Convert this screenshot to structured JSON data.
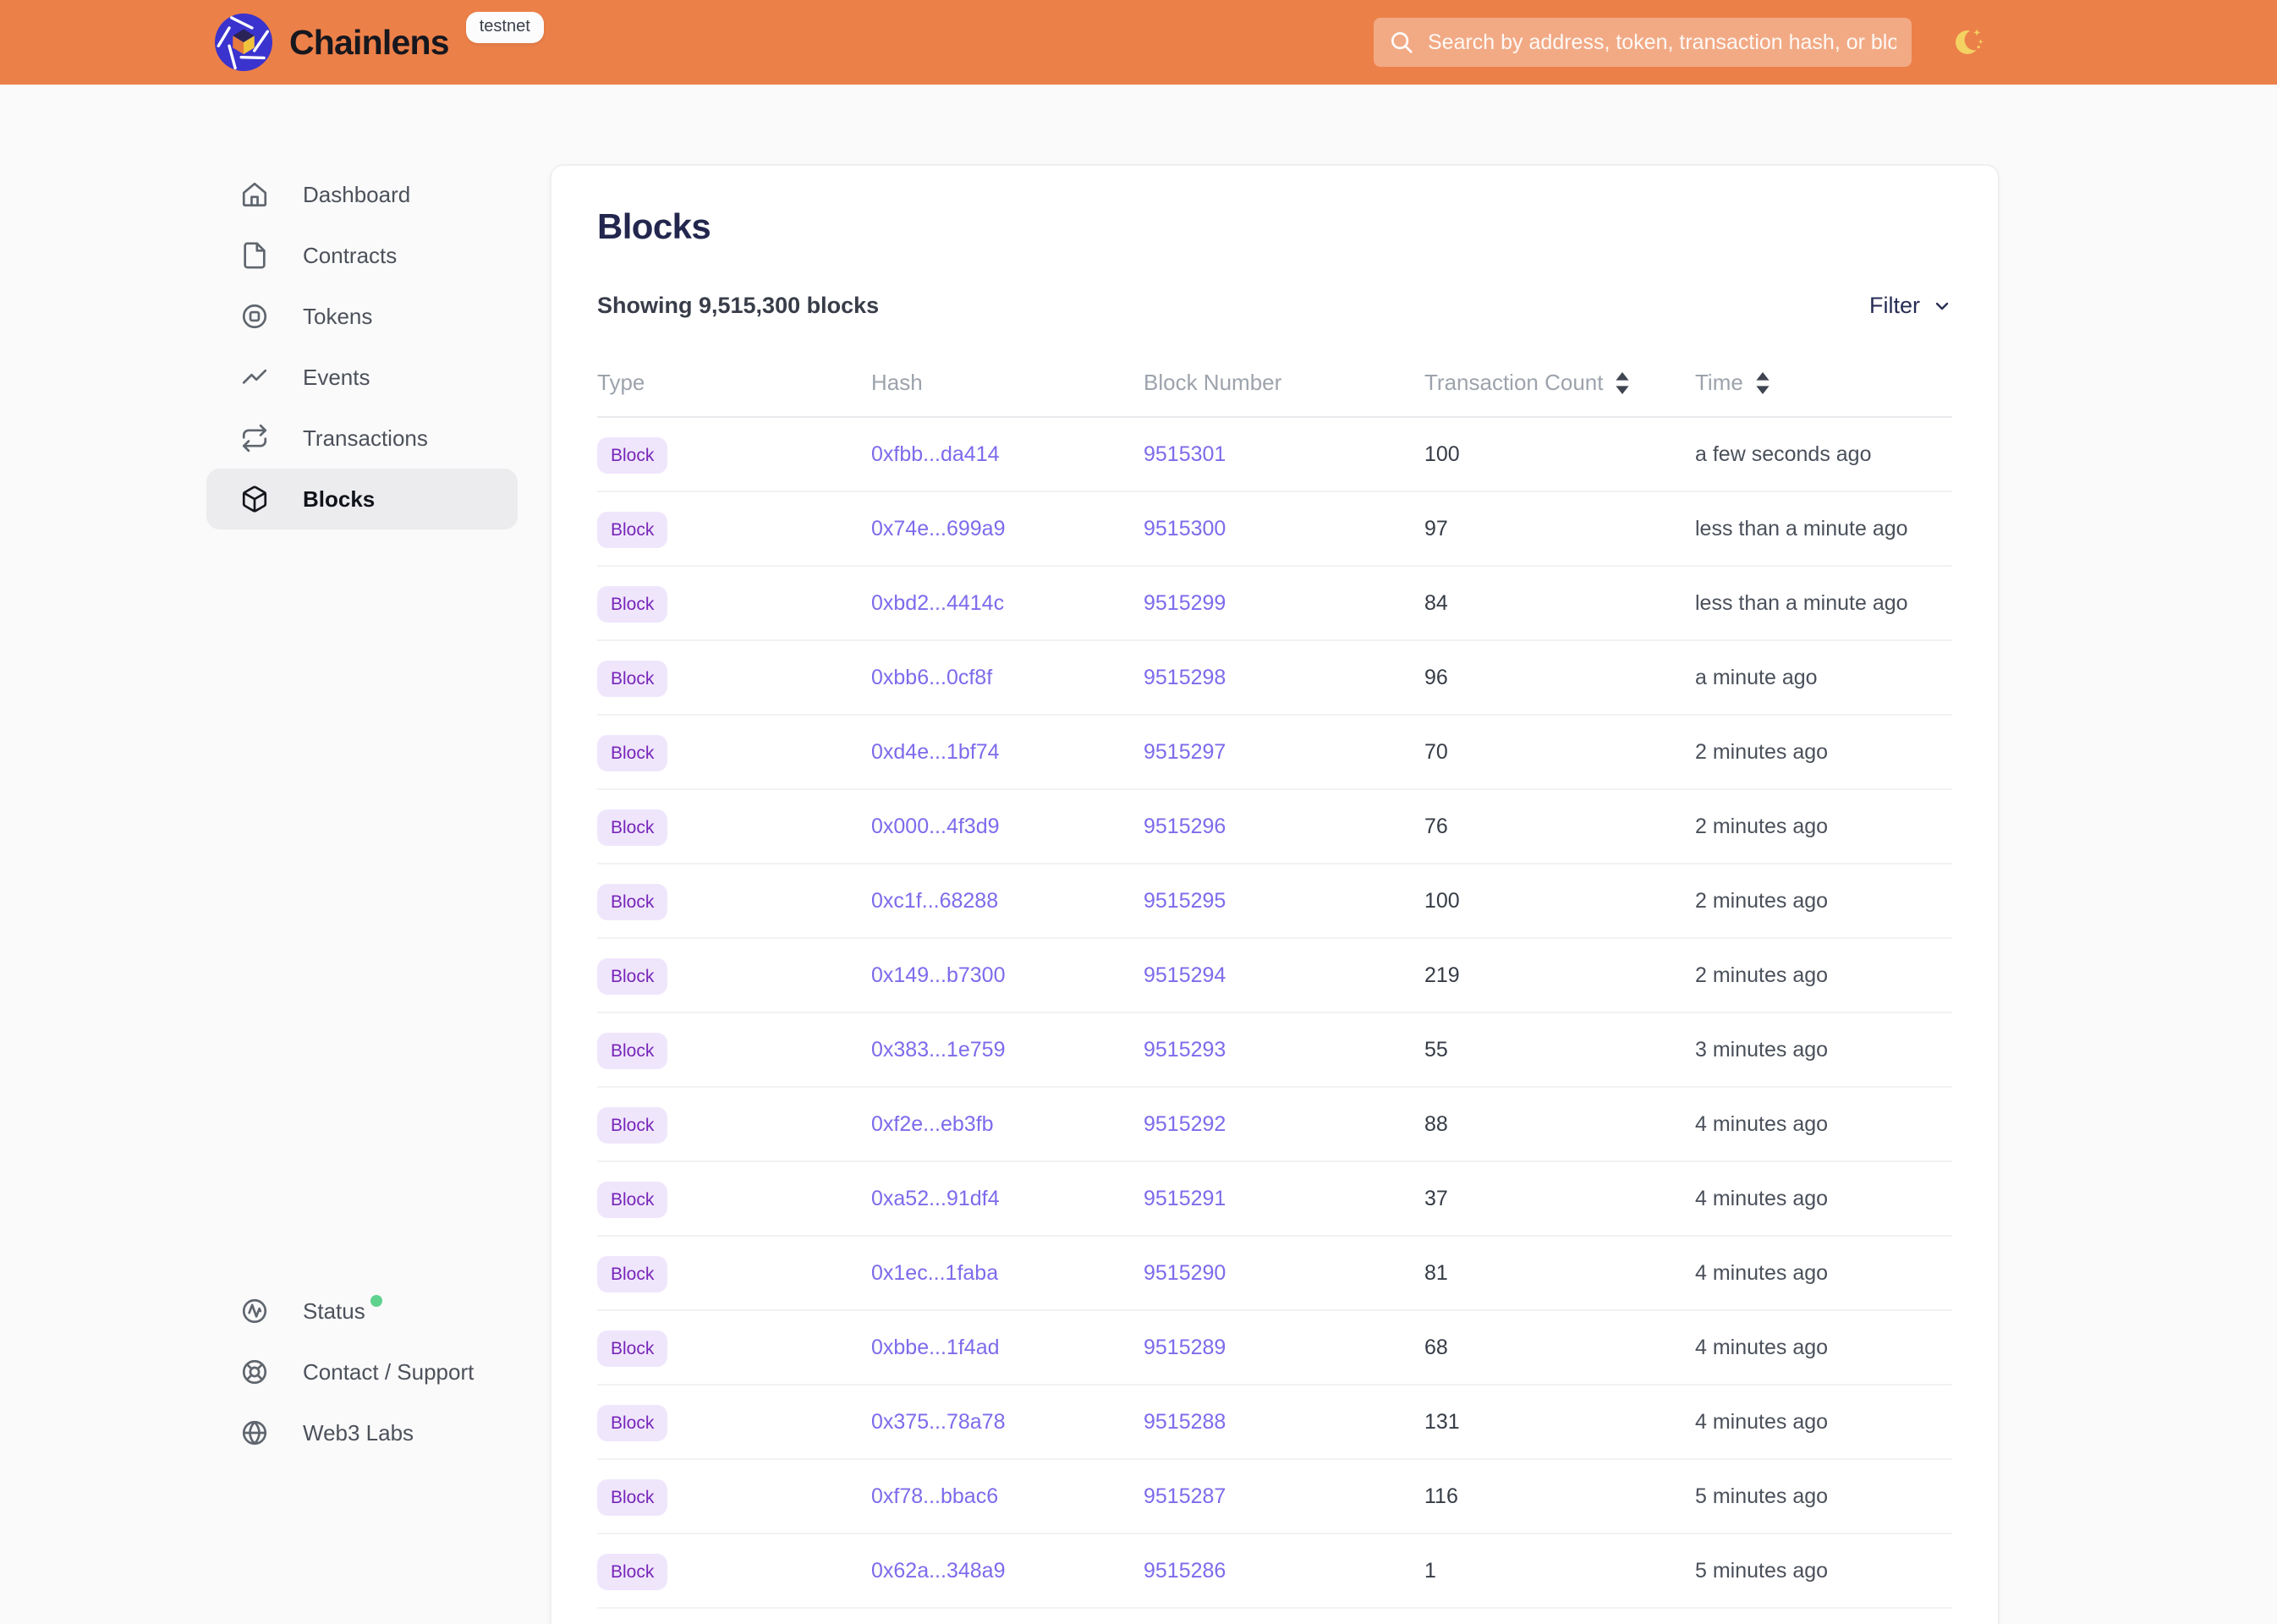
{
  "colors": {
    "header_bg": "#EC8049",
    "page_bg": "#FAFAFB",
    "title": "#23274E",
    "link": "#7C6BEB",
    "badge_bg": "#EFE6FC",
    "badge_text": "#7725B8",
    "status_dot": "#5FD38E",
    "logo_blue": "#3B33CE",
    "moon_yellow": "#F3D263"
  },
  "header": {
    "brand": "Chainlens",
    "env_badge": "testnet",
    "search_placeholder": "Search by address, token, transaction hash, or block number",
    "icons": {
      "search": "search-icon",
      "theme": "moon-icon"
    }
  },
  "sidebar": {
    "items": [
      {
        "label": "Dashboard",
        "icon": "home-icon",
        "active": false
      },
      {
        "label": "Contracts",
        "icon": "file-icon",
        "active": false
      },
      {
        "label": "Tokens",
        "icon": "token-icon",
        "active": false
      },
      {
        "label": "Events",
        "icon": "activity-icon",
        "active": false
      },
      {
        "label": "Transactions",
        "icon": "repeat-icon",
        "active": false
      },
      {
        "label": "Blocks",
        "icon": "cube-icon",
        "active": true
      }
    ],
    "footer_items": [
      {
        "label": "Status",
        "icon": "status-icon",
        "status_dot": true
      },
      {
        "label": "Contact / Support",
        "icon": "support-icon",
        "status_dot": false
      },
      {
        "label": "Web3 Labs",
        "icon": "globe-icon",
        "status_dot": false
      }
    ]
  },
  "main": {
    "title": "Blocks",
    "summary": "Showing 9,515,300 blocks",
    "filter_label": "Filter",
    "table": {
      "columns": [
        {
          "label": "Type",
          "sortable": false
        },
        {
          "label": "Hash",
          "sortable": false
        },
        {
          "label": "Block Number",
          "sortable": false
        },
        {
          "label": "Transaction Count",
          "sortable": true
        },
        {
          "label": "Time",
          "sortable": true
        }
      ],
      "rows": [
        {
          "type": "Block",
          "hash": "0xfbb...da414",
          "block_number": "9515301",
          "transaction_count": "100",
          "time": "a few seconds ago"
        },
        {
          "type": "Block",
          "hash": "0x74e...699a9",
          "block_number": "9515300",
          "transaction_count": "97",
          "time": "less than a minute ago"
        },
        {
          "type": "Block",
          "hash": "0xbd2...4414c",
          "block_number": "9515299",
          "transaction_count": "84",
          "time": "less than a minute ago"
        },
        {
          "type": "Block",
          "hash": "0xbb6...0cf8f",
          "block_number": "9515298",
          "transaction_count": "96",
          "time": "a minute ago"
        },
        {
          "type": "Block",
          "hash": "0xd4e...1bf74",
          "block_number": "9515297",
          "transaction_count": "70",
          "time": "2 minutes ago"
        },
        {
          "type": "Block",
          "hash": "0x000...4f3d9",
          "block_number": "9515296",
          "transaction_count": "76",
          "time": "2 minutes ago"
        },
        {
          "type": "Block",
          "hash": "0xc1f...68288",
          "block_number": "9515295",
          "transaction_count": "100",
          "time": "2 minutes ago"
        },
        {
          "type": "Block",
          "hash": "0x149...b7300",
          "block_number": "9515294",
          "transaction_count": "219",
          "time": "2 minutes ago"
        },
        {
          "type": "Block",
          "hash": "0x383...1e759",
          "block_number": "9515293",
          "transaction_count": "55",
          "time": "3 minutes ago"
        },
        {
          "type": "Block",
          "hash": "0xf2e...eb3fb",
          "block_number": "9515292",
          "transaction_count": "88",
          "time": "4 minutes ago"
        },
        {
          "type": "Block",
          "hash": "0xa52...91df4",
          "block_number": "9515291",
          "transaction_count": "37",
          "time": "4 minutes ago"
        },
        {
          "type": "Block",
          "hash": "0x1ec...1faba",
          "block_number": "9515290",
          "transaction_count": "81",
          "time": "4 minutes ago"
        },
        {
          "type": "Block",
          "hash": "0xbbe...1f4ad",
          "block_number": "9515289",
          "transaction_count": "68",
          "time": "4 minutes ago"
        },
        {
          "type": "Block",
          "hash": "0x375...78a78",
          "block_number": "9515288",
          "transaction_count": "131",
          "time": "4 minutes ago"
        },
        {
          "type": "Block",
          "hash": "0xf78...bbac6",
          "block_number": "9515287",
          "transaction_count": "116",
          "time": "5 minutes ago"
        },
        {
          "type": "Block",
          "hash": "0x62a...348a9",
          "block_number": "9515286",
          "transaction_count": "1",
          "time": "5 minutes ago"
        }
      ]
    }
  }
}
